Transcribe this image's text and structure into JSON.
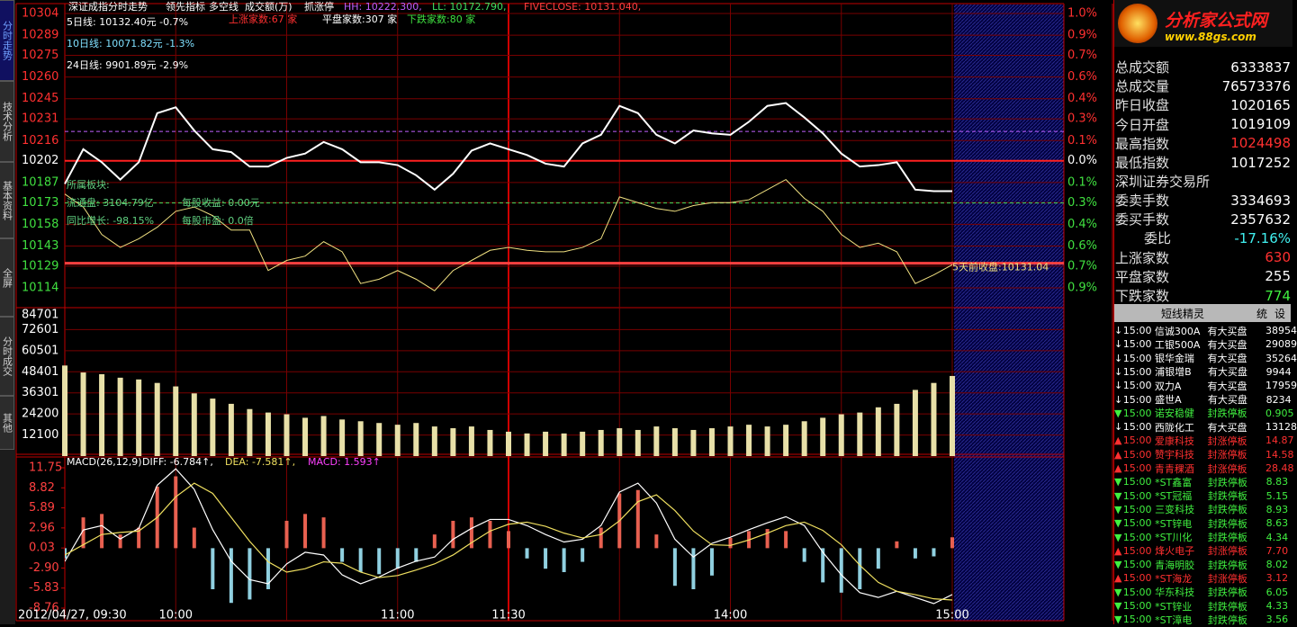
{
  "tabs": [
    "分时走势",
    "技术分析",
    "基本资料",
    "全屏",
    "分时成交",
    "其他"
  ],
  "logo": {
    "title": "分析家公式网",
    "url": "www.88gs.com"
  },
  "price_panel": {
    "title": "深证成指分时走势",
    "menus": [
      "领先指标",
      "多空线",
      "成交额(万)",
      "抓涨停"
    ],
    "hh": {
      "value": 10222.3,
      "label": "HH: 10222.300,",
      "color": "#c060ff"
    },
    "ll": {
      "value": 10172.79,
      "label": "LL: 10172.790,",
      "color": "#40e060"
    },
    "fiveclose": {
      "value": 10131.04,
      "label": "FIVECLOSE: 10131.040,",
      "color": "#ff4040"
    },
    "ma_lines": [
      {
        "text": "5日线: 10132.40元   -0.7%",
        "color": "#ffffff"
      },
      {
        "text": "10日线: 10071.82元   -1.3%",
        "color": "#80e0ff"
      },
      {
        "text": "24日线: 9901.89元   -2.9%",
        "color": "#ffffff"
      }
    ],
    "breadth": [
      {
        "text": "上涨家数:67 家",
        "color": "#ff3030"
      },
      {
        "text": "平盘家数:307 家",
        "color": "#ffffff"
      },
      {
        "text": "下跌家数:80 家",
        "color": "#40e040"
      }
    ],
    "info": [
      "所属板块:",
      "流通盘: 3104.79亿",
      "每股收益: 0.00元",
      "同比增长: -98.15%",
      "每股市盈: 0.0倍"
    ],
    "fiveclose_note": "5天前收盘:10131.04",
    "ylim": [
      10114,
      10304
    ],
    "yticks": [
      10304,
      10289,
      10275,
      10260,
      10245,
      10231,
      10216,
      10202,
      10187,
      10173,
      10158,
      10143,
      10129,
      10114
    ],
    "pct_ticks": [
      "1.0%",
      "0.9%",
      "0.7%",
      "0.6%",
      "0.4%",
      "0.3%",
      "0.1%",
      "0.0%",
      "0.1%",
      "0.3%",
      "0.4%",
      "0.6%",
      "0.7%",
      "0.9%"
    ],
    "series": [
      {
        "color": "#ffffff",
        "values": [
          10186,
          10210,
          10201,
          10189,
          10201,
          10235,
          10239,
          10223,
          10210,
          10208,
          10198,
          10198,
          10204,
          10207,
          10215,
          10210,
          10201,
          10201,
          10199,
          10192,
          10182,
          10193,
          10209,
          10214,
          10210,
          10206,
          10200,
          10198,
          10214,
          10220,
          10240,
          10235,
          10220,
          10214,
          10223,
          10221,
          10220,
          10229,
          10240,
          10242,
          10232,
          10221,
          10207,
          10198,
          10199,
          10201,
          10182,
          10181,
          10181
        ]
      },
      {
        "color": "#f0e080",
        "values": [
          10179,
          10170,
          10151,
          10142,
          10148,
          10156,
          10167,
          10170,
          10164,
          10154,
          10154,
          10126,
          10133,
          10136,
          10146,
          10139,
          10117,
          10120,
          10126,
          10120,
          10112,
          10126,
          10133,
          10140,
          10142,
          10140,
          10139,
          10139,
          10142,
          10148,
          10177,
          10173,
          10169,
          10167,
          10171,
          10173,
          10173,
          10175,
          10182,
          10189,
          10176,
          10167,
          10151,
          10142,
          10145,
          10139,
          10117,
          10123,
          10130
        ]
      }
    ]
  },
  "volume_panel": {
    "ylim": [
      0,
      84701
    ],
    "yticks": [
      84701,
      72601,
      60501,
      48401,
      36301,
      24200,
      12100
    ],
    "color": "#e8e0a8",
    "values": [
      52000,
      48000,
      47000,
      45000,
      44000,
      42000,
      40000,
      36000,
      33000,
      30000,
      27000,
      25000,
      24000,
      22000,
      23000,
      21000,
      20000,
      19000,
      18000,
      19000,
      17000,
      16000,
      17000,
      15000,
      14000,
      13000,
      14000,
      13000,
      14000,
      15000,
      16000,
      15000,
      17000,
      16000,
      15000,
      16000,
      17000,
      18000,
      17000,
      18000,
      20000,
      22000,
      24000,
      25000,
      28000,
      30000,
      38000,
      42000,
      46000
    ]
  },
  "macd_panel": {
    "header": [
      {
        "text": "MACD(26,12,9)",
        "color": "#ffffff"
      },
      {
        "text": "DIFF: -6.784↑,",
        "color": "#ffffff"
      },
      {
        "text": "DEA: -7.581↑,",
        "color": "#f0e060"
      },
      {
        "text": "MACD: 1.593↑",
        "color": "#ff40ff"
      }
    ],
    "ylim": [
      -8.76,
      11.75
    ],
    "yticks": [
      11.75,
      8.82,
      5.89,
      2.96,
      0.03,
      {
        "value": -2.9,
        "label": "-2.90"
      },
      -5.83,
      -8.76
    ],
    "up_color": "#e86050",
    "down_color": "#90d0e0",
    "bars": [
      -1.5,
      4.5,
      5.0,
      2.0,
      3.0,
      9.0,
      10.5,
      3.0,
      -6.0,
      -8.0,
      -7.5,
      -6.0,
      4.0,
      5.0,
      4.5,
      -2.0,
      -3.5,
      -3.8,
      -3.0,
      -2.0,
      2.0,
      4.0,
      4.5,
      4.0,
      2.5,
      -1.5,
      -3.0,
      -3.5,
      -2.0,
      3.0,
      8.0,
      8.5,
      2.0,
      -5.5,
      -6.0,
      -4.0,
      1.5,
      2.5,
      2.8,
      2.5,
      -2.0,
      -5.0,
      -6.5,
      -6.0,
      -3.0,
      1.0,
      -1.5,
      -1.2,
      1.593
    ],
    "series": [
      {
        "color": "#ffffff",
        "values": [
          -1.94,
          2.66,
          3.3,
          1.34,
          2.9,
          9.2,
          11.6,
          8.6,
          2.7,
          -1.9,
          -4.6,
          -5.2,
          -2.3,
          -0.6,
          -1.0,
          -3.9,
          -5.2,
          -4.2,
          -2.9,
          -1.9,
          -1.3,
          1.3,
          2.9,
          4.2,
          4.2,
          3.3,
          2.0,
          0.9,
          1.3,
          3.3,
          8.2,
          9.5,
          6.6,
          1.3,
          -1.3,
          0.7,
          1.6,
          2.7,
          3.7,
          4.6,
          3.3,
          -0.6,
          -3.9,
          -6.5,
          -7.2,
          -6.3,
          -7.2,
          -8.1,
          -6.784
        ]
      },
      {
        "color": "#f0e060",
        "values": [
          -1.0,
          0.5,
          2.0,
          2.3,
          2.5,
          4.5,
          7.5,
          9.5,
          8.0,
          4.5,
          1.0,
          -2.0,
          -3.5,
          -3.0,
          -2.0,
          -2.2,
          -3.5,
          -4.3,
          -4.0,
          -3.2,
          -2.3,
          -1.0,
          0.8,
          2.5,
          3.5,
          3.8,
          3.2,
          2.2,
          1.5,
          2.0,
          4.0,
          6.8,
          7.8,
          5.5,
          2.5,
          0.5,
          0.4,
          1.2,
          2.2,
          3.3,
          3.8,
          2.6,
          0.5,
          -2.5,
          -5.0,
          -6.3,
          -6.8,
          -7.4,
          -7.581
        ]
      }
    ]
  },
  "time_labels": [
    "2012/04/27, 09:30",
    "10:00",
    "11:00",
    "11:30",
    "14:00",
    "15:00"
  ],
  "quote": {
    "rows": [
      {
        "label": "总成交额",
        "value": "6333837",
        "color": "#ffffff"
      },
      {
        "label": "总成交量",
        "value": "76573376",
        "color": "#ffffff"
      },
      {
        "label": "昨日收盘",
        "value": "1020165",
        "color": "#ffffff"
      },
      {
        "label": "今日开盘",
        "value": "1019109",
        "color": "#ffffff"
      },
      {
        "label": "最高指数",
        "value": "1024498",
        "color": "#ff3030"
      },
      {
        "label": "最低指数",
        "value": "1017252",
        "color": "#ffffff"
      }
    ],
    "exchange": "深圳证券交易所",
    "rows2": [
      {
        "label": "委卖手数",
        "value": "3334693",
        "color": "#ffffff"
      },
      {
        "label": "委买手数",
        "value": "2357632",
        "color": "#ffffff"
      },
      {
        "label": "委比",
        "value": "-17.16%",
        "color": "#40f0f0"
      },
      {
        "label": "上涨家数",
        "value": "630",
        "color": "#ff3030"
      },
      {
        "label": "平盘家数",
        "value": "255",
        "color": "#ffffff"
      },
      {
        "label": "下跌家数",
        "value": "774",
        "color": "#40f040"
      }
    ]
  },
  "sprite": {
    "title": "短线精灵",
    "buttons": [
      "统",
      "设"
    ],
    "rows": [
      [
        "↓",
        "15:00",
        "信诚300A",
        "有大买盘",
        "38954"
      ],
      [
        "↓",
        "15:00",
        "工银500A",
        "有大买盘",
        "29089"
      ],
      [
        "↓",
        "15:00",
        "银华金瑞",
        "有大买盘",
        "35264"
      ],
      [
        "↓",
        "15:00",
        "浦银增B",
        "有大买盘",
        "9944"
      ],
      [
        "↓",
        "15:00",
        "双力A",
        "有大买盘",
        "17959"
      ],
      [
        "↓",
        "15:00",
        "盛世A",
        "有大买盘",
        "8234"
      ],
      [
        "▼",
        "15:00",
        "诺安稳健",
        "封跌停板",
        "0.905"
      ],
      [
        "↓",
        "15:00",
        "西陇化工",
        "有大买盘",
        "13128"
      ],
      [
        "▲",
        "15:00",
        "爱康科技",
        "封涨停板",
        "14.87"
      ],
      [
        "▲",
        "15:00",
        "赞宇科技",
        "封涨停板",
        "14.58"
      ],
      [
        "▲",
        "15:00",
        "青青稞酒",
        "封涨停板",
        "28.48"
      ],
      [
        "▼",
        "15:00",
        "*ST鑫富",
        "封跌停板",
        "8.83"
      ],
      [
        "▼",
        "15:00",
        "*ST冠福",
        "封跌停板",
        "5.15"
      ],
      [
        "▼",
        "15:00",
        "三变科技",
        "封跌停板",
        "8.93"
      ],
      [
        "▼",
        "15:00",
        "*ST锌电",
        "封跌停板",
        "8.63"
      ],
      [
        "▼",
        "15:00",
        "*ST川化",
        "封跌停板",
        "4.34"
      ],
      [
        "▲",
        "15:00",
        "烽火电子",
        "封涨停板",
        "7.70"
      ],
      [
        "▼",
        "15:00",
        "青海明胶",
        "封跌停板",
        "8.02"
      ],
      [
        "▲",
        "15:00",
        "*ST海龙",
        "封涨停板",
        "3.12"
      ],
      [
        "▼",
        "15:00",
        "华东科技",
        "封跌停板",
        "6.05"
      ],
      [
        "▼",
        "15:00",
        "*ST锌业",
        "封跌停板",
        "4.33"
      ],
      [
        "▼",
        "15:00",
        "*ST漳电",
        "封跌停板",
        "3.56"
      ]
    ]
  }
}
